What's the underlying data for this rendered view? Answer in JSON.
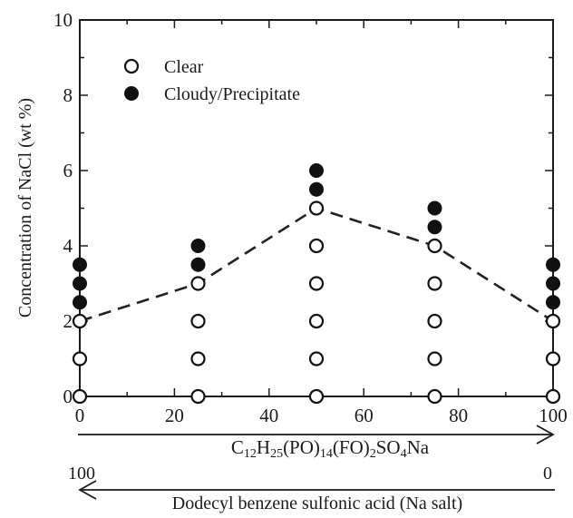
{
  "chart_data": {
    "type": "scatter",
    "title": "",
    "xlabel": "",
    "ylabel": "Concentration of NaCl (wt %)",
    "xlim": [
      0,
      100
    ],
    "ylim": [
      0,
      10
    ],
    "xticks": [
      0,
      20,
      40,
      60,
      80,
      100
    ],
    "yticks": [
      0,
      2,
      4,
      6,
      8,
      10
    ],
    "grid": false,
    "legend_position": "top-left",
    "series": [
      {
        "name": "Clear",
        "marker": "open-circle",
        "points": [
          [
            0,
            0
          ],
          [
            0,
            1
          ],
          [
            0,
            2
          ],
          [
            25,
            0
          ],
          [
            25,
            1
          ],
          [
            25,
            2
          ],
          [
            25,
            3
          ],
          [
            50,
            0
          ],
          [
            50,
            1
          ],
          [
            50,
            2
          ],
          [
            50,
            3
          ],
          [
            50,
            4
          ],
          [
            50,
            5
          ],
          [
            75,
            0
          ],
          [
            75,
            1
          ],
          [
            75,
            2
          ],
          [
            75,
            3
          ],
          [
            75,
            4
          ],
          [
            100,
            0
          ],
          [
            100,
            1
          ],
          [
            100,
            2
          ]
        ]
      },
      {
        "name": "Cloudy/Precipitate",
        "marker": "filled-circle",
        "points": [
          [
            0,
            2.5
          ],
          [
            0,
            3
          ],
          [
            0,
            3.5
          ],
          [
            25,
            3.5
          ],
          [
            25,
            4
          ],
          [
            50,
            5.5
          ],
          [
            50,
            6
          ],
          [
            75,
            4.5
          ],
          [
            75,
            5
          ],
          [
            100,
            2.5
          ],
          [
            100,
            3
          ],
          [
            100,
            3.5
          ]
        ]
      }
    ],
    "boundary_line": {
      "style": "dashed",
      "x": [
        0,
        25,
        50,
        75,
        100
      ],
      "y": [
        2,
        3,
        5,
        4,
        2
      ]
    },
    "secondary_axes": {
      "forward": {
        "formula": [
          {
            "text": "C",
            "sub": false
          },
          {
            "text": "12",
            "sub": true
          },
          {
            "text": "H",
            "sub": false
          },
          {
            "text": "25",
            "sub": true
          },
          {
            "text": "(PO)",
            "sub": false
          },
          {
            "text": "14",
            "sub": true
          },
          {
            "text": "(FO)",
            "sub": false
          },
          {
            "text": "2",
            "sub": true
          },
          {
            "text": "SO",
            "sub": false
          },
          {
            "text": "4",
            "sub": true
          },
          {
            "text": "Na",
            "sub": false
          }
        ]
      },
      "reverse": {
        "start_label": "100",
        "end_label": "0",
        "label": "Dodecyl benzene sulfonic acid (Na salt)"
      }
    },
    "colors": {
      "axis": "#1a1a1a",
      "marker": "#111111",
      "line": "#222222"
    }
  }
}
